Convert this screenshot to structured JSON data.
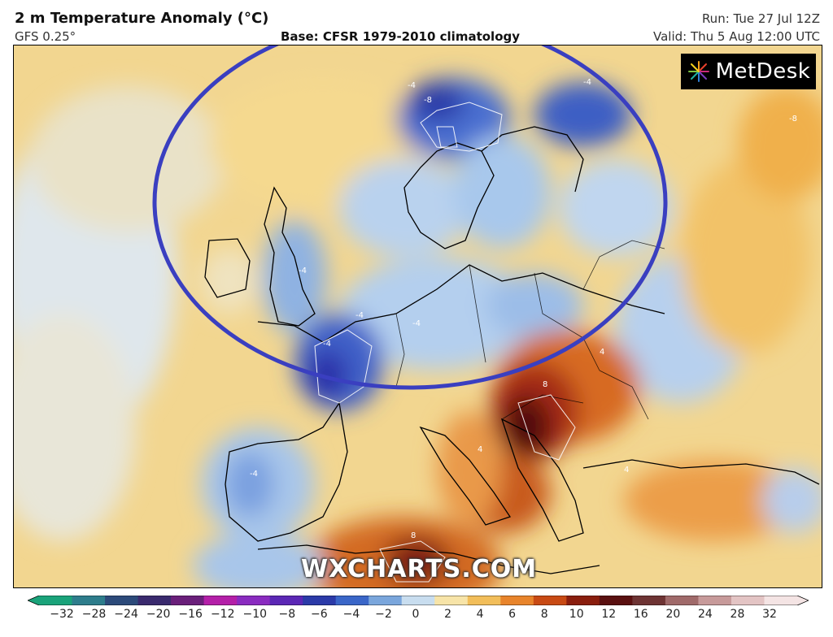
{
  "header": {
    "title": "2 m Temperature Anomaly (°C)",
    "model": "GFS 0.25°",
    "base": "Base: CFSR 1979-2010 climatology",
    "run": "Run: Tue 27 Jul 12Z",
    "valid": "Valid: Thu 5 Aug 12:00 UTC"
  },
  "logo": {
    "text": "MetDesk"
  },
  "watermark": "WXCHARTS.COM",
  "contour_labels": [
    "-4",
    "-8",
    "-4",
    "-4",
    "-4",
    "-4",
    "-4",
    "-8",
    "4",
    "8",
    "4",
    "8",
    "4",
    "-4"
  ],
  "colorbar": {
    "ticks": [
      "−32",
      "−28",
      "−24",
      "−20",
      "−16",
      "−12",
      "−10",
      "−8",
      "−6",
      "−4",
      "−2",
      "0",
      "2",
      "4",
      "6",
      "8",
      "10",
      "12",
      "16",
      "20",
      "24",
      "28",
      "32"
    ],
    "colors": [
      "#1aa37a",
      "#2e7d8c",
      "#2c4a7a",
      "#3a2a6e",
      "#6a1f7a",
      "#b41fa8",
      "#8a2bc0",
      "#5b27b5",
      "#2b3aa8",
      "#3a66c8",
      "#7aa6dc",
      "#c8ddef",
      "#f7e4a8",
      "#f2be5a",
      "#e8842b",
      "#c84a14",
      "#8a1e0e",
      "#5a1010",
      "#6e3434",
      "#a06a6a",
      "#c79a9a",
      "#e3c4c4",
      "#f4e4e4"
    ]
  },
  "annotation": {
    "shape": "ellipse",
    "color": "#3a3fc0"
  },
  "colors": {
    "land_outline": "#000000",
    "contour": "#ffffff"
  }
}
